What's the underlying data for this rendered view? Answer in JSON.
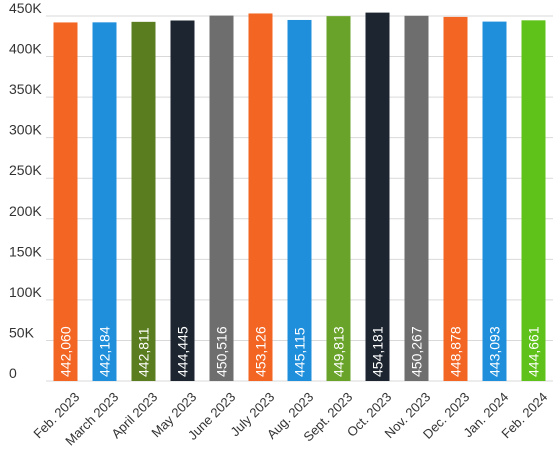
{
  "chart_data": {
    "type": "bar",
    "categories": [
      "Feb. 2023",
      "March 2023",
      "April 2023",
      "May 2023",
      "June 2023",
      "July 2023",
      "Aug. 2023",
      "Sept. 2023",
      "Oct. 2023",
      "Nov. 2023",
      "Dec. 2023",
      "Jan. 2024",
      "Feb. 2024"
    ],
    "values": [
      442060,
      442184,
      442811,
      444445,
      450516,
      453126,
      445115,
      449813,
      454181,
      450267,
      448878,
      443093,
      444661
    ],
    "value_labels": [
      "442,060",
      "442,184",
      "442,811",
      "444,445",
      "450,516",
      "453,126",
      "445,115",
      "449,813",
      "454,181",
      "450,267",
      "448,878",
      "443,093",
      "444,661"
    ],
    "bar_colors": [
      "#f26522",
      "#1f8fdc",
      "#5a7d1f",
      "#1d2630",
      "#6e6e6e",
      "#f26522",
      "#1f8fdc",
      "#6aa329",
      "#1d2630",
      "#6e6e6e",
      "#f26522",
      "#1f8fdc",
      "#5fc21a"
    ],
    "yticks": [
      0,
      50000,
      100000,
      150000,
      200000,
      250000,
      300000,
      350000,
      400000,
      450000
    ],
    "ytick_labels": [
      "0",
      "50K",
      "100K",
      "150K",
      "200K",
      "250K",
      "300K",
      "350K",
      "400K",
      "450K"
    ],
    "ylim": [
      0,
      450000
    ],
    "title": "",
    "xlabel": "",
    "ylabel": "",
    "grid": true,
    "legend": "none"
  }
}
